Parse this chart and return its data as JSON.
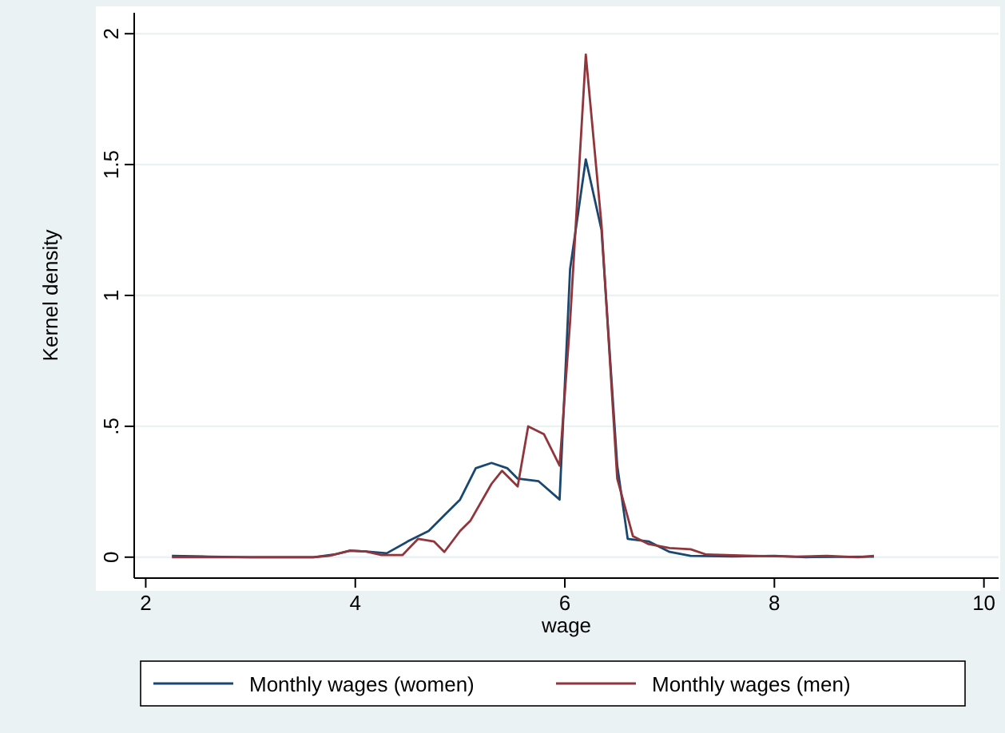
{
  "chart_data": {
    "type": "line",
    "xlabel": "wage",
    "ylabel": "Kernel density",
    "xlim": [
      1.89,
      10.14
    ],
    "ylim": [
      -0.08,
      2.08
    ],
    "xticks": [
      2,
      4,
      6,
      8,
      10
    ],
    "yticks": [
      0,
      {
        "value": 0.5,
        "label": ".5"
      },
      1,
      1.5,
      2
    ],
    "grid": "y",
    "legend": "bottom",
    "series": [
      {
        "name": "Monthly wages (women)",
        "color": "#1a476f",
        "x": [
          2.25,
          2.6,
          3.0,
          3.6,
          3.8,
          3.95,
          4.1,
          4.3,
          4.5,
          4.7,
          4.85,
          5.0,
          5.15,
          5.3,
          5.45,
          5.55,
          5.75,
          5.95,
          6.05,
          6.2,
          6.35,
          6.5,
          6.6,
          6.8,
          7.0,
          7.2,
          7.6,
          8.0,
          8.3,
          8.95
        ],
        "values": [
          0.005,
          0.002,
          0,
          0,
          0.01,
          0.025,
          0.022,
          0.015,
          0.06,
          0.1,
          0.16,
          0.22,
          0.34,
          0.36,
          0.34,
          0.3,
          0.29,
          0.22,
          1.1,
          1.52,
          1.25,
          0.35,
          0.07,
          0.06,
          0.02,
          0.005,
          0.003,
          0.005,
          0,
          0.002
        ]
      },
      {
        "name": "Monthly wages (men)",
        "color": "#90353b",
        "x": [
          2.25,
          2.6,
          3.6,
          3.75,
          3.95,
          4.1,
          4.25,
          4.45,
          4.6,
          4.75,
          4.85,
          5.0,
          5.1,
          5.3,
          5.4,
          5.55,
          5.65,
          5.8,
          5.95,
          6.05,
          6.2,
          6.35,
          6.5,
          6.65,
          6.8,
          7.0,
          7.2,
          7.35,
          7.8,
          8.2,
          8.5,
          8.8,
          8.95
        ],
        "values": [
          0,
          0,
          0,
          0.005,
          0.025,
          0.022,
          0.008,
          0.008,
          0.07,
          0.06,
          0.02,
          0.1,
          0.14,
          0.28,
          0.33,
          0.27,
          0.5,
          0.47,
          0.35,
          0.9,
          1.92,
          1.27,
          0.3,
          0.08,
          0.05,
          0.035,
          0.03,
          0.01,
          0.005,
          0.002,
          0.005,
          0,
          0.005
        ]
      }
    ]
  }
}
